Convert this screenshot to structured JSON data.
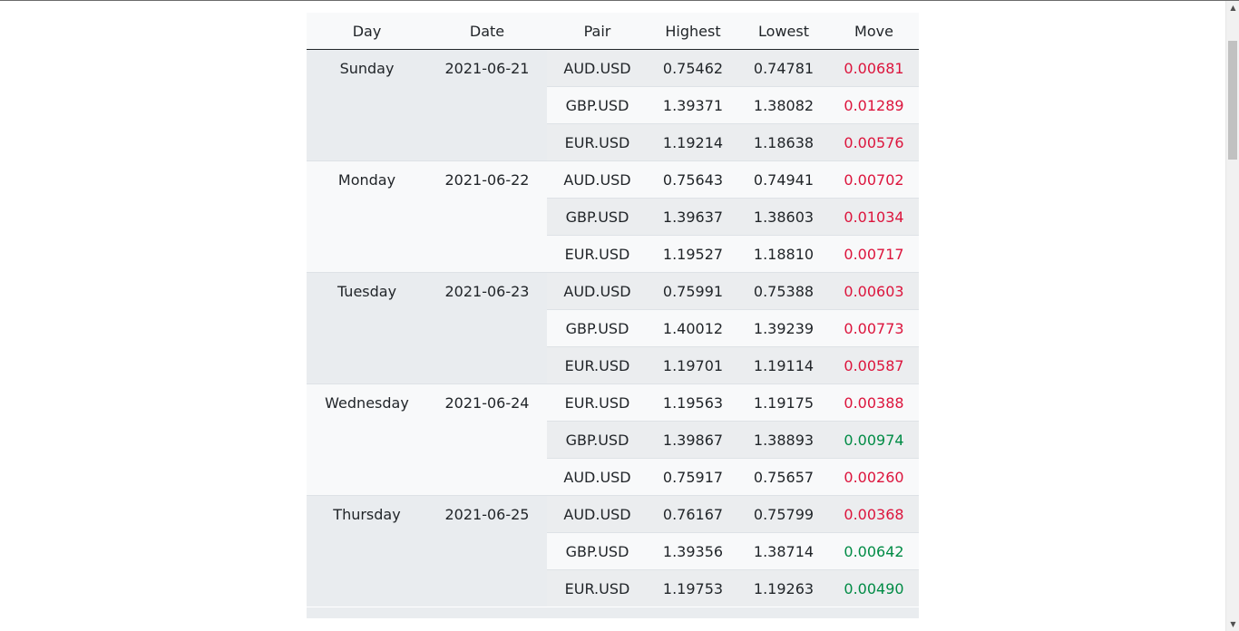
{
  "table": {
    "headers": [
      "Day",
      "Date",
      "Pair",
      "Highest",
      "Lowest",
      "Move"
    ],
    "groups": [
      {
        "day": "Sunday",
        "date": "2021-06-21",
        "rows": [
          {
            "pair": "AUD.USD",
            "highest": "0.75462",
            "lowest": "0.74781",
            "move": "0.00681",
            "direction": "down"
          },
          {
            "pair": "GBP.USD",
            "highest": "1.39371",
            "lowest": "1.38082",
            "move": "0.01289",
            "direction": "down"
          },
          {
            "pair": "EUR.USD",
            "highest": "1.19214",
            "lowest": "1.18638",
            "move": "0.00576",
            "direction": "down"
          }
        ]
      },
      {
        "day": "Monday",
        "date": "2021-06-22",
        "rows": [
          {
            "pair": "AUD.USD",
            "highest": "0.75643",
            "lowest": "0.74941",
            "move": "0.00702",
            "direction": "down"
          },
          {
            "pair": "GBP.USD",
            "highest": "1.39637",
            "lowest": "1.38603",
            "move": "0.01034",
            "direction": "down"
          },
          {
            "pair": "EUR.USD",
            "highest": "1.19527",
            "lowest": "1.18810",
            "move": "0.00717",
            "direction": "down"
          }
        ]
      },
      {
        "day": "Tuesday",
        "date": "2021-06-23",
        "rows": [
          {
            "pair": "AUD.USD",
            "highest": "0.75991",
            "lowest": "0.75388",
            "move": "0.00603",
            "direction": "down"
          },
          {
            "pair": "GBP.USD",
            "highest": "1.40012",
            "lowest": "1.39239",
            "move": "0.00773",
            "direction": "down"
          },
          {
            "pair": "EUR.USD",
            "highest": "1.19701",
            "lowest": "1.19114",
            "move": "0.00587",
            "direction": "down"
          }
        ]
      },
      {
        "day": "Wednesday",
        "date": "2021-06-24",
        "rows": [
          {
            "pair": "EUR.USD",
            "highest": "1.19563",
            "lowest": "1.19175",
            "move": "0.00388",
            "direction": "down"
          },
          {
            "pair": "GBP.USD",
            "highest": "1.39867",
            "lowest": "1.38893",
            "move": "0.00974",
            "direction": "up"
          },
          {
            "pair": "AUD.USD",
            "highest": "0.75917",
            "lowest": "0.75657",
            "move": "0.00260",
            "direction": "down"
          }
        ]
      },
      {
        "day": "Thursday",
        "date": "2021-06-25",
        "rows": [
          {
            "pair": "AUD.USD",
            "highest": "0.76167",
            "lowest": "0.75799",
            "move": "0.00368",
            "direction": "down"
          },
          {
            "pair": "GBP.USD",
            "highest": "1.39356",
            "lowest": "1.38714",
            "move": "0.00642",
            "direction": "up"
          },
          {
            "pair": "EUR.USD",
            "highest": "1.19753",
            "lowest": "1.19263",
            "move": "0.00490",
            "direction": "up"
          }
        ]
      }
    ]
  },
  "colors": {
    "move_down": "#dc143c",
    "move_up": "#008b45",
    "stripe_dark": "#e9ecef",
    "stripe_light": "#f8f9fa"
  },
  "icons": {
    "scroll_up": "scroll-up-arrow-icon",
    "scroll_down": "scroll-down-arrow-icon"
  }
}
